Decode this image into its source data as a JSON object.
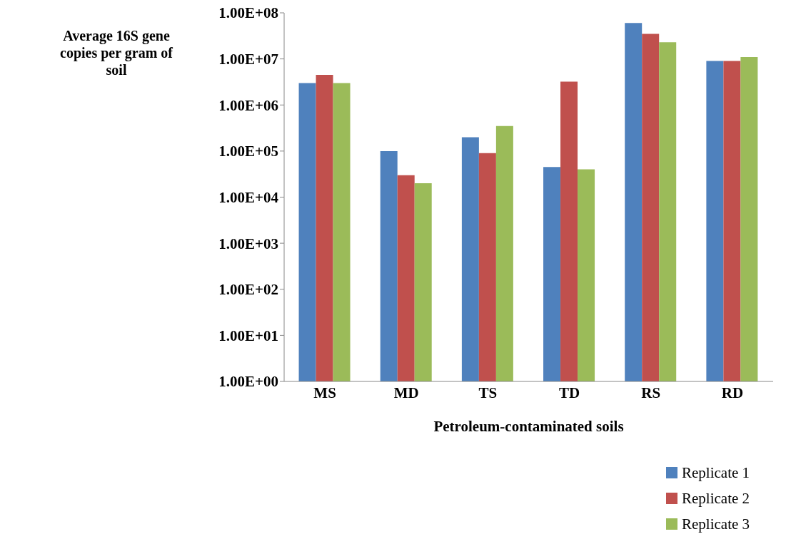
{
  "chart_data": {
    "type": "bar",
    "xlabel": "Petroleum-contaminated soils",
    "ylabel": "Average 16S gene copies per gram of soil",
    "categories": [
      "MS",
      "MD",
      "TS",
      "TD",
      "RS",
      "RD"
    ],
    "series": [
      {
        "name": "Replicate 1",
        "color": "#4f81bd",
        "values": [
          3000000,
          100000,
          200000,
          45000,
          60000000,
          9000000
        ]
      },
      {
        "name": "Replicate 2",
        "color": "#c0504d",
        "values": [
          4500000,
          30000,
          90000,
          3200000,
          35000000,
          9000000
        ]
      },
      {
        "name": "Replicate 3",
        "color": "#9bbb59",
        "values": [
          3000000,
          20000,
          350000,
          40000,
          23000000,
          11000000
        ]
      }
    ],
    "log": true,
    "ylim": [
      1,
      100000000
    ],
    "yticks": [
      {
        "value": 1,
        "label": "1.00E+00"
      },
      {
        "value": 10,
        "label": "1.00E+01"
      },
      {
        "value": 100,
        "label": "1.00E+02"
      },
      {
        "value": 1000,
        "label": "1.00E+03"
      },
      {
        "value": 10000,
        "label": "1.00E+04"
      },
      {
        "value": 100000,
        "label": "1.00E+05"
      },
      {
        "value": 1000000,
        "label": "1.00E+06"
      },
      {
        "value": 10000000,
        "label": "1.00E+07"
      },
      {
        "value": 100000000,
        "label": "1.00E+08"
      }
    ],
    "grid": false,
    "legend": "bottom right"
  }
}
